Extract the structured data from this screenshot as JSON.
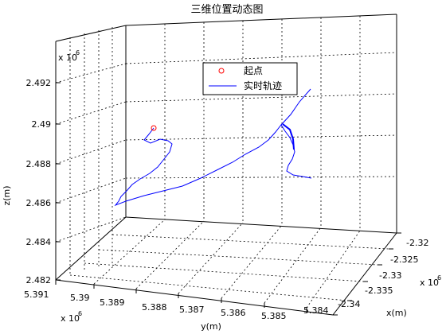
{
  "chart_data": {
    "type": "line3d",
    "title": "三维位置动态图",
    "xlabel": "x(m)",
    "ylabel": "y(m)",
    "zlabel": "z(m)",
    "x_ticks": [
      "-2.32",
      "-2.325",
      "-2.33",
      "-2.335",
      "-2.34"
    ],
    "x_exponent_label": "x 10",
    "x_exponent": "6",
    "y_ticks": [
      "5.391",
      "5.39",
      "5.389",
      "5.388",
      "5.387",
      "5.386",
      "5.385",
      "5.384"
    ],
    "y_exponent_label": "x 10",
    "y_exponent": "6",
    "z_ticks": [
      "2.482",
      "2.484",
      "2.486",
      "2.488",
      "2.49",
      "2.492"
    ],
    "z_exponent_label": "x 10",
    "z_exponent": "6",
    "legend": {
      "start_label": "起点",
      "track_label": "实时轨迹"
    },
    "grid": true,
    "colors": {
      "track": "#0000ff",
      "start_marker": "#ff0000"
    }
  }
}
